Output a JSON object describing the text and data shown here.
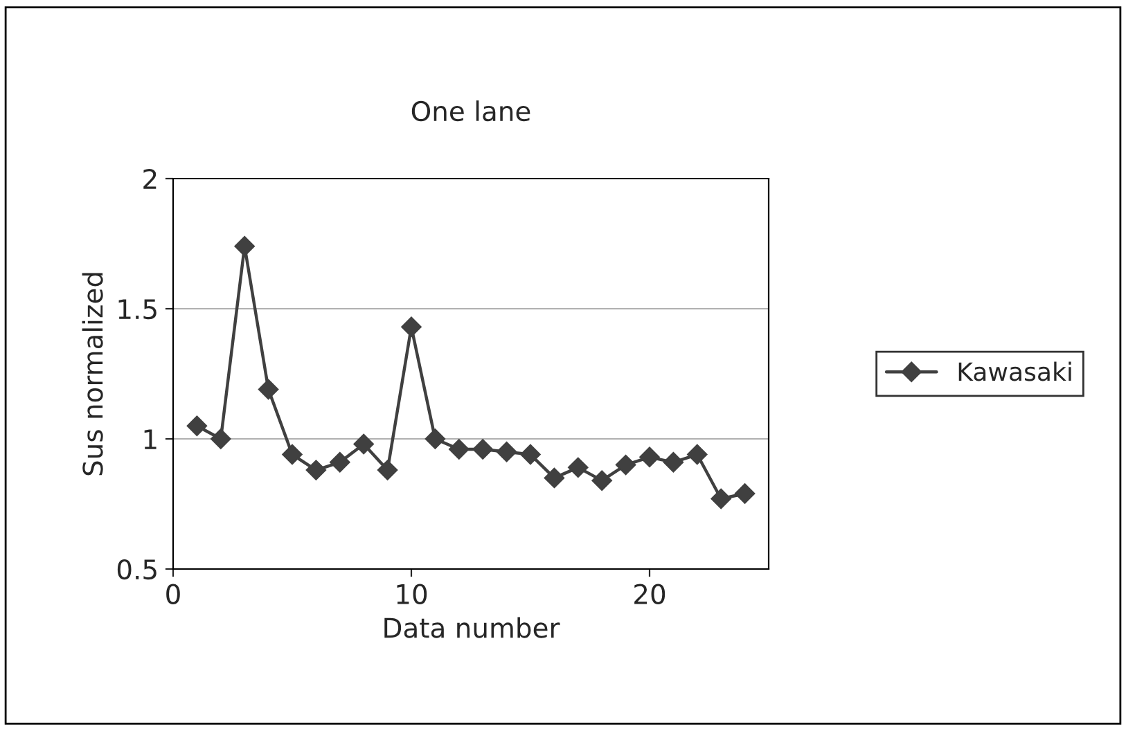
{
  "chart_data": {
    "type": "line",
    "title": "One lane",
    "xlabel": "Data number",
    "ylabel": "Sus normalized",
    "x": [
      1,
      2,
      3,
      4,
      5,
      6,
      7,
      8,
      9,
      10,
      11,
      12,
      13,
      14,
      15,
      16,
      17,
      18,
      19,
      20,
      21,
      22,
      23,
      24
    ],
    "series": [
      {
        "name": "Kawasaki",
        "color": "#404040",
        "values": [
          1.05,
          1.0,
          1.74,
          1.19,
          0.94,
          0.88,
          0.91,
          0.98,
          0.88,
          1.43,
          1.0,
          0.96,
          0.96,
          0.95,
          0.94,
          0.85,
          0.89,
          0.84,
          0.9,
          0.93,
          0.91,
          0.94,
          0.77,
          0.79
        ]
      }
    ],
    "xlim": [
      0,
      25
    ],
    "xticks": [
      0,
      10,
      20
    ],
    "ylim": [
      0.5,
      2
    ],
    "yticks": [
      0.5,
      1,
      1.5,
      2
    ],
    "grid": "y",
    "legend": "right",
    "marker": "diamond",
    "line_style": "solid"
  }
}
